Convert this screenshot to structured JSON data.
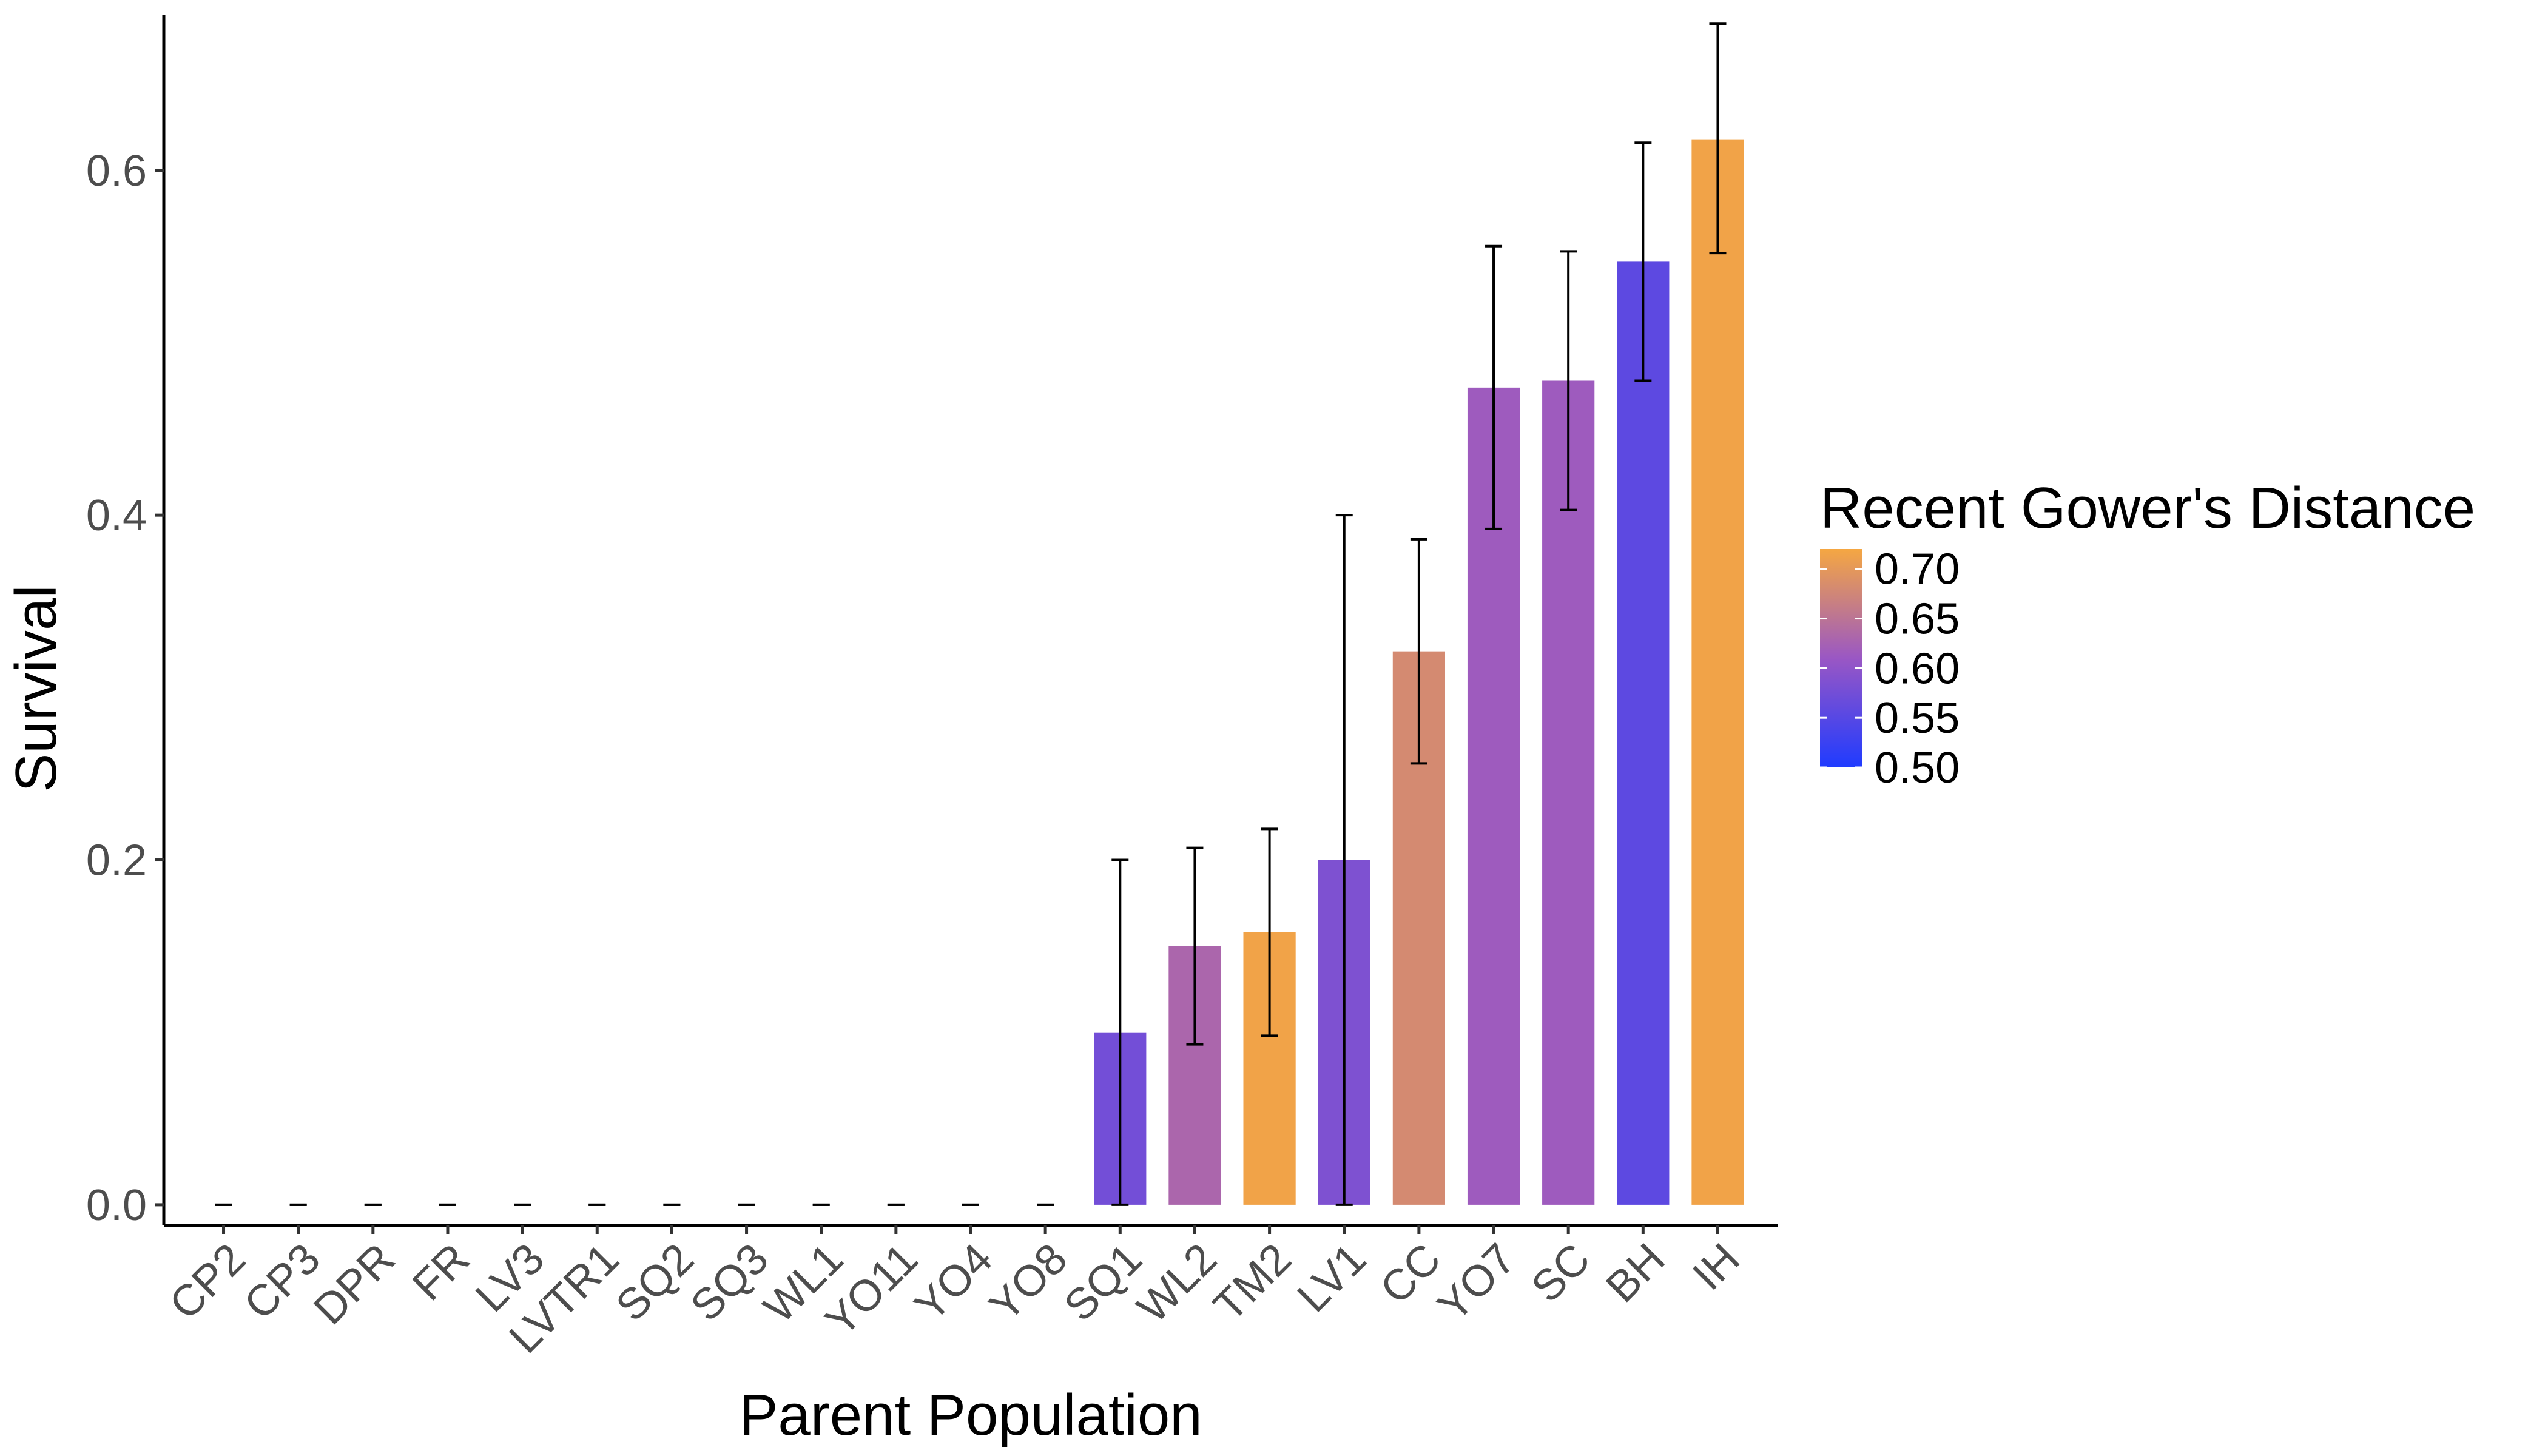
{
  "chart_data": {
    "type": "bar",
    "xlabel": "Parent Population",
    "ylabel": "Survival",
    "ylim": [
      -0.012,
      0.69
    ],
    "yticks": [
      0.0,
      0.2,
      0.4,
      0.6
    ],
    "ytick_labels": [
      "0.0",
      "0.2",
      "0.4",
      "0.6"
    ],
    "grid": false,
    "legend_position": "right",
    "categories": [
      "CP2",
      "CP3",
      "DPR",
      "FR",
      "LV3",
      "LVTR1",
      "SQ2",
      "SQ3",
      "WL1",
      "YO11",
      "YO4",
      "YO8",
      "SQ1",
      "WL2",
      "TM2",
      "LV1",
      "CC",
      "YO7",
      "SC",
      "BH",
      "IH"
    ],
    "values": [
      0,
      0,
      0,
      0,
      0,
      0,
      0,
      0,
      0,
      0,
      0,
      0,
      0.1,
      0.15,
      0.158,
      0.2,
      0.321,
      0.474,
      0.478,
      0.547,
      0.618
    ],
    "error_low": [
      0,
      0,
      0,
      0,
      0,
      0,
      0,
      0,
      0,
      0,
      0,
      0,
      0.0,
      0.093,
      0.098,
      0.0,
      0.256,
      0.392,
      0.403,
      0.478,
      0.552
    ],
    "error_high": [
      0,
      0,
      0,
      0,
      0,
      0,
      0,
      0,
      0,
      0,
      0,
      0,
      0.2,
      0.207,
      0.218,
      0.4,
      0.386,
      0.556,
      0.553,
      0.616,
      0.685
    ],
    "color_values": [
      0.5,
      0.5,
      0.5,
      0.5,
      0.5,
      0.5,
      0.5,
      0.5,
      0.5,
      0.5,
      0.5,
      0.5,
      0.575,
      0.63,
      0.715,
      0.585,
      0.68,
      0.615,
      0.615,
      0.555,
      0.715
    ],
    "legend": {
      "title": "Recent Gower's Distance",
      "breaks": [
        0.7,
        0.65,
        0.6,
        0.55,
        0.5
      ],
      "labels": [
        "0.70",
        "0.65",
        "0.60",
        "0.55",
        "0.50"
      ],
      "range": [
        0.5,
        0.72
      ],
      "colors": [
        "#1f3bff",
        "#9a57c4",
        "#f5a742"
      ]
    }
  }
}
